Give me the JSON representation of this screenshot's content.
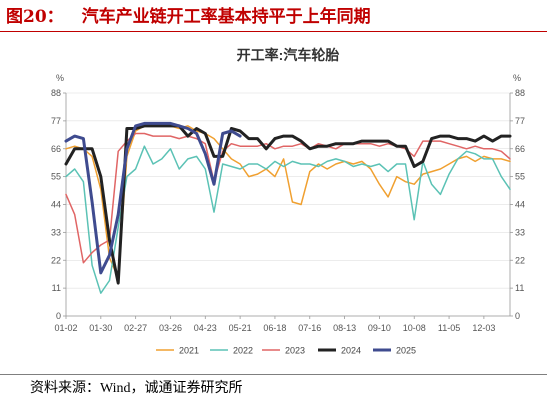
{
  "figure": {
    "number": "图20：",
    "title": "汽车产业链开工率基本持平于上年同期",
    "source": "资料来源：Wind，诚通证券研究所"
  },
  "chart_data": {
    "type": "line",
    "title": "开工率:汽车轮胎",
    "y_unit": "%",
    "ylim": [
      0,
      88
    ],
    "yticks": [
      0,
      11,
      22,
      33,
      44,
      55,
      66,
      77,
      88
    ],
    "xlim": [
      0,
      51
    ],
    "x_tick_labels": [
      "01-02",
      "01-30",
      "02-27",
      "03-26",
      "04-23",
      "05-21",
      "06-18",
      "07-16",
      "08-13",
      "09-10",
      "10-08",
      "11-05",
      "12-03"
    ],
    "x_tick_weeks": [
      0,
      4,
      8,
      12,
      16,
      20,
      24,
      28,
      32,
      36,
      40,
      44,
      48
    ],
    "legend_position": "bottom",
    "series": [
      {
        "name": "2021",
        "color": "#f0a030",
        "width": 1.5,
        "x": [
          0,
          1,
          2,
          3,
          4,
          5,
          6,
          7,
          8,
          9,
          10,
          11,
          12,
          13,
          14,
          15,
          16,
          17,
          18,
          19,
          20,
          21,
          22,
          23,
          24,
          25,
          26,
          27,
          28,
          29,
          30,
          31,
          32,
          33,
          34,
          35,
          36,
          37,
          38,
          39,
          40,
          41,
          42,
          43,
          44,
          45,
          46,
          47,
          48,
          49,
          50,
          51
        ],
        "values": [
          66,
          67,
          66,
          63,
          50,
          23,
          15,
          63,
          73,
          75,
          75,
          75,
          75,
          74,
          75,
          73,
          72,
          70,
          66,
          62,
          60,
          55,
          56,
          58,
          55,
          62,
          45,
          44,
          57,
          60,
          58,
          60,
          61,
          60,
          61,
          58,
          52,
          47,
          55,
          53,
          52,
          56,
          57,
          58,
          60,
          62,
          63,
          61,
          63,
          62,
          62,
          61
        ]
      },
      {
        "name": "2022",
        "color": "#5bc2b5",
        "width": 1.5,
        "x": [
          0,
          1,
          2,
          3,
          4,
          5,
          6,
          7,
          8,
          9,
          10,
          11,
          12,
          13,
          14,
          15,
          16,
          17,
          18,
          19,
          20,
          21,
          22,
          23,
          24,
          25,
          26,
          27,
          28,
          29,
          30,
          31,
          32,
          33,
          34,
          35,
          36,
          37,
          38,
          39,
          40,
          41,
          42,
          43,
          44,
          45,
          46,
          47,
          48,
          49,
          50,
          51
        ],
        "values": [
          55,
          58,
          53,
          20,
          9,
          14,
          35,
          55,
          58,
          67,
          60,
          62,
          66,
          58,
          62,
          63,
          58,
          41,
          60,
          59,
          58,
          60,
          60,
          58,
          61,
          59,
          61,
          60,
          60,
          59,
          61,
          62,
          61,
          59,
          60,
          59,
          60,
          57,
          60,
          60,
          38,
          61,
          52,
          48,
          56,
          62,
          65,
          64,
          62,
          62,
          55,
          50
        ]
      },
      {
        "name": "2023",
        "color": "#e06565",
        "width": 1.5,
        "x": [
          0,
          1,
          2,
          3,
          4,
          5,
          6,
          7,
          8,
          9,
          10,
          11,
          12,
          13,
          14,
          15,
          16,
          17,
          18,
          19,
          20,
          21,
          22,
          23,
          24,
          25,
          26,
          27,
          28,
          29,
          30,
          31,
          32,
          33,
          34,
          35,
          36,
          37,
          38,
          39,
          40,
          41,
          42,
          43,
          44,
          45,
          46,
          47,
          48,
          49,
          50,
          51
        ],
        "values": [
          48,
          40,
          21,
          25,
          28,
          30,
          65,
          69,
          72,
          72,
          71,
          71,
          71,
          70,
          71,
          70,
          68,
          53,
          65,
          68,
          67,
          67,
          67,
          68,
          66,
          67,
          67,
          68,
          66,
          68,
          67,
          66,
          68,
          68,
          68,
          68,
          67,
          68,
          67,
          66,
          63,
          69,
          69,
          69,
          68,
          67,
          66,
          67,
          66,
          66,
          65,
          62
        ]
      },
      {
        "name": "2024",
        "color": "#222222",
        "width": 3,
        "x": [
          0,
          1,
          2,
          3,
          4,
          5,
          6,
          7,
          8,
          9,
          10,
          11,
          12,
          13,
          14,
          15,
          16,
          17,
          18,
          19,
          20,
          21,
          22,
          23,
          24,
          25,
          26,
          27,
          28,
          29,
          30,
          31,
          32,
          33,
          34,
          35,
          36,
          37,
          38,
          39,
          40,
          41,
          42,
          43,
          44,
          45,
          46,
          47,
          48,
          49,
          50,
          51
        ],
        "values": [
          60,
          66,
          66,
          66,
          55,
          30,
          13,
          74,
          74,
          75,
          75,
          75,
          75,
          75,
          71,
          74,
          72,
          63,
          63,
          74,
          73,
          70,
          70,
          66,
          70,
          71,
          71,
          69,
          66,
          67,
          67,
          68,
          68,
          68,
          69,
          69,
          69,
          69,
          67,
          67,
          59,
          61,
          70,
          71,
          71,
          70,
          70,
          69,
          71,
          69,
          71,
          71
        ]
      },
      {
        "name": "2025",
        "color": "#3f4b8f",
        "width": 3,
        "x": [
          0,
          1,
          2,
          3,
          4,
          5,
          6,
          7,
          8,
          9,
          10,
          11,
          12,
          13,
          14,
          15,
          16,
          17,
          18,
          19,
          20
        ],
        "values": [
          69,
          71,
          70,
          45,
          17,
          24,
          40,
          66,
          75,
          76,
          76,
          76,
          76,
          75,
          74,
          72,
          64,
          52,
          72,
          73,
          71
        ]
      }
    ]
  }
}
